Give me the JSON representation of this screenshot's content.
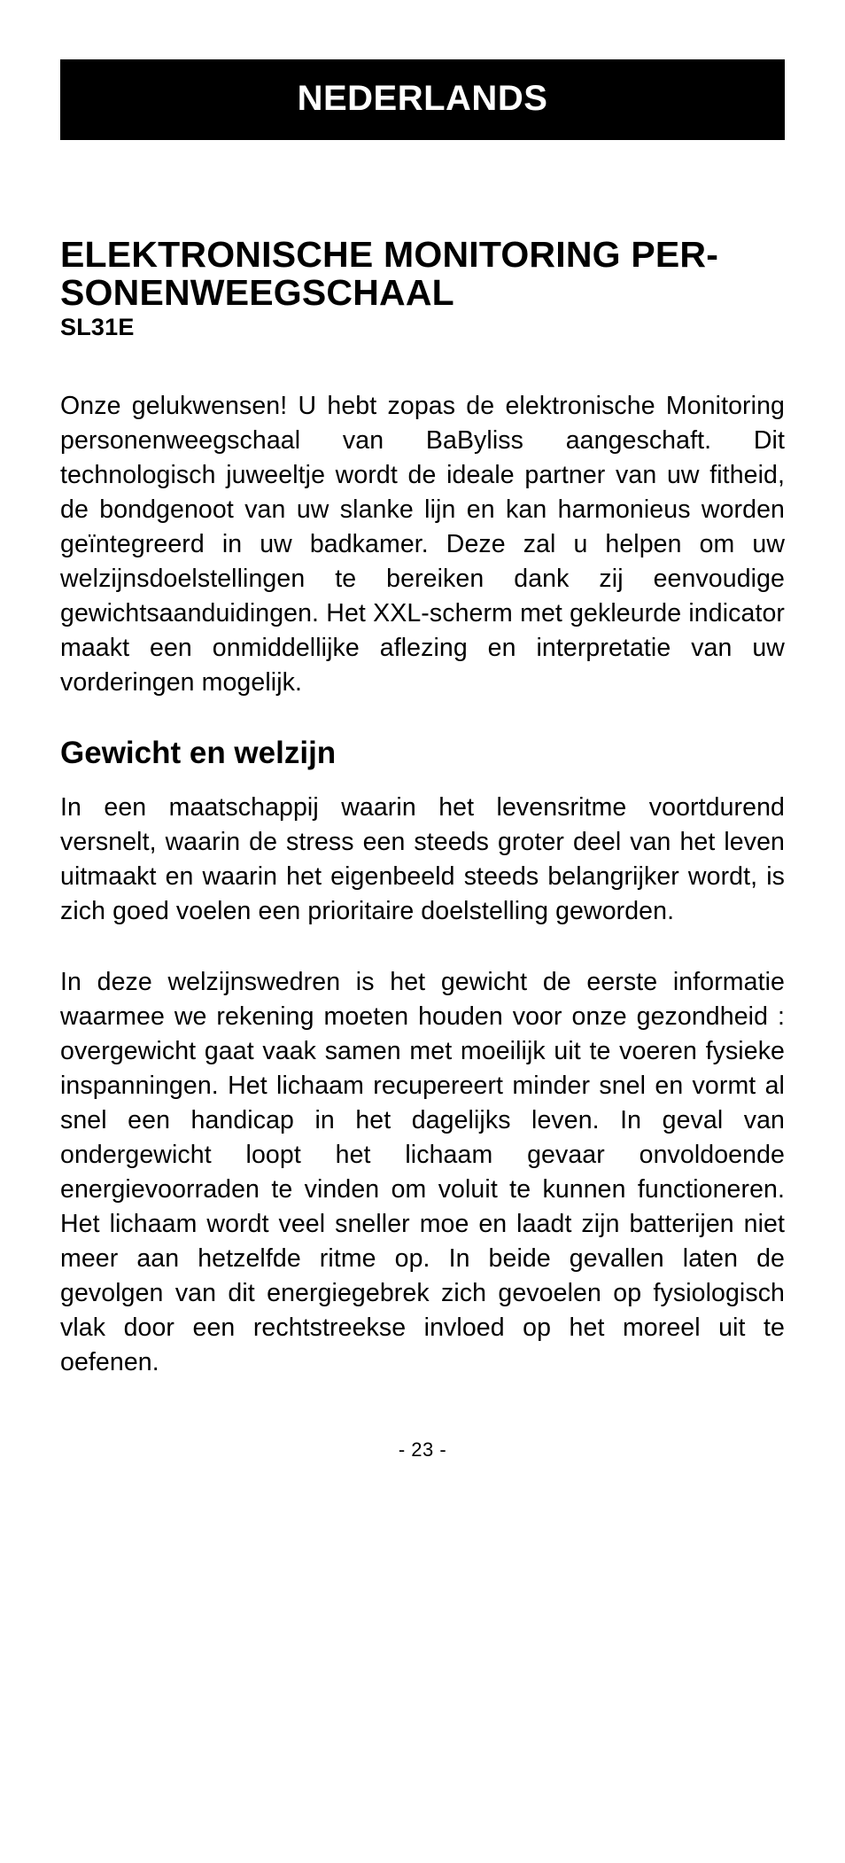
{
  "language_banner": "NEDERLANDS",
  "title": "ELEKTRONISCHE MONITORING PER­SONENWEEGSCHAAL",
  "model": "SL31E",
  "intro_paragraph": "Onze gelukwensen! U hebt zopas de elektronische Monitoring personenweegschaal van BaByliss aan­geschaft. Dit technologisch juweeltje wordt de ideale partner van uw fitheid, de bondgenoot van uw slanke lijn en kan harmonieus worden geïntegreerd in uw badkamer. Deze zal u helpen om uw welzijnsdoelstel­lingen te bereiken dank zij eenvoudige gewichtsaan­duidingen. Het XXL-scherm met gekleurde indicator maakt een onmiddellijke aflezing en interpretatie van uw vorderingen mogelijk.",
  "section_heading": "Gewicht en welzijn",
  "section_p1": "In een maatschappij waarin het levensritme voortdu­rend versnelt, waarin de stress een steeds groter deel van het leven uitmaakt en waarin het eigenbeeld steeds belangrijker wordt, is zich goed voelen een prio­ritaire doelstelling geworden.",
  "section_p2": "In deze welzijnswedren is het gewicht de eerste infor­matie waarmee we rekening moeten houden voor onze gezondheid : overgewicht gaat vaak samen met moei­lijk uit te voeren fysieke inspanningen. Het lichaam re­cupereert minder snel en vormt al snel een handicap in het dagelijks leven. In geval van ondergewicht loopt het lichaam gevaar onvoldoende energievoorraden te vinden om voluit te kunnen functioneren.  Het lichaam wordt veel sneller moe en laadt zijn batterijen niet meer aan hetzelfde ritme op. In beide gevallen laten de gevolgen van dit energiegebrek zich gevoelen op fysiologisch vlak door een rechtstreekse invloed op het moreel uit te oefenen.",
  "page_number": "- 23 -",
  "colors": {
    "banner_bg": "#000000",
    "banner_fg": "#ffffff",
    "text": "#000000",
    "page_bg": "#ffffff"
  },
  "typography": {
    "banner_fontsize": 40,
    "title_fontsize": 41,
    "model_fontsize": 27,
    "body_fontsize": 28.5,
    "heading_fontsize": 35,
    "pagenum_fontsize": 22
  }
}
